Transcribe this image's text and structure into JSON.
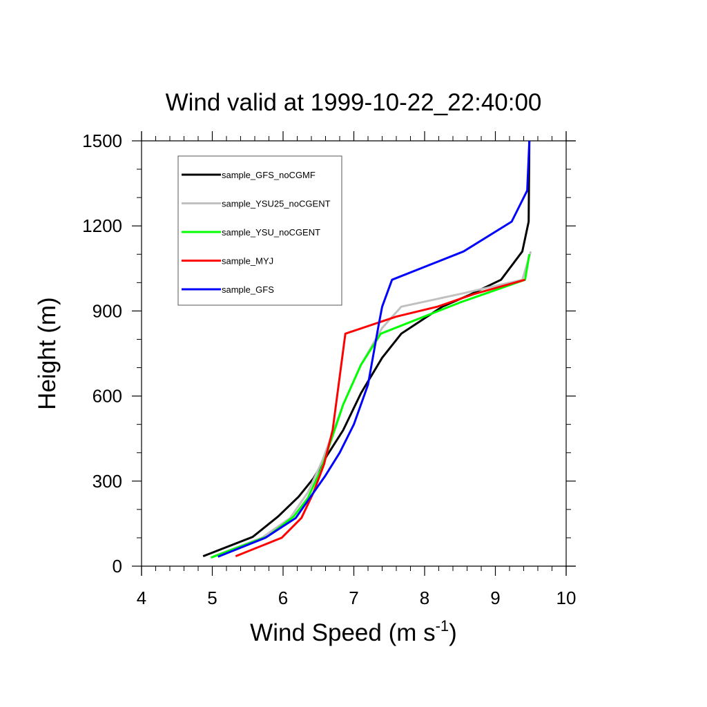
{
  "chart_data": {
    "type": "line",
    "title": "Wind valid at 1999-10-22_22:40:00",
    "xlabel": "Wind Speed (m s",
    "xlabel_sup": "-1",
    "xlabel_close": ")",
    "ylabel": "Height (m)",
    "xlim": [
      4,
      10
    ],
    "ylim": [
      0,
      1500
    ],
    "xticks": [
      4,
      5,
      6,
      7,
      8,
      9,
      10
    ],
    "yticks": [
      0,
      300,
      600,
      900,
      1200,
      1500
    ],
    "grid": false,
    "legend_position": "top-left",
    "colors": {
      "axis": "#000000",
      "legend_border": "#555555"
    },
    "series": [
      {
        "name": "sample_GFS_noCGMF",
        "color": "#000000",
        "points": [
          [
            4.87,
            35
          ],
          [
            5.57,
            103
          ],
          [
            5.93,
            175
          ],
          [
            6.22,
            245
          ],
          [
            6.43,
            310
          ],
          [
            6.62,
            390
          ],
          [
            6.85,
            480
          ],
          [
            7.1,
            610
          ],
          [
            7.4,
            735
          ],
          [
            7.67,
            820
          ],
          [
            8.25,
            915
          ],
          [
            8.62,
            955
          ],
          [
            9.08,
            1010
          ],
          [
            9.38,
            1110
          ],
          [
            9.47,
            1215
          ],
          [
            9.48,
            1500
          ]
        ]
      },
      {
        "name": "sample_YSU25_noCGENT",
        "color": "#c0c0c0",
        "points": [
          [
            5.02,
            35
          ],
          [
            5.7,
            100
          ],
          [
            6.1,
            170
          ],
          [
            6.35,
            260
          ],
          [
            6.55,
            370
          ],
          [
            6.7,
            470
          ],
          [
            6.85,
            570
          ],
          [
            7.1,
            710
          ],
          [
            7.4,
            840
          ],
          [
            7.67,
            915
          ],
          [
            8.5,
            960
          ],
          [
            9.38,
            1010
          ],
          [
            9.5,
            1110
          ]
        ]
      },
      {
        "name": "sample_YSU_noCGENT",
        "color": "#00ff00",
        "points": [
          [
            4.98,
            30
          ],
          [
            5.78,
            105
          ],
          [
            6.15,
            175
          ],
          [
            6.35,
            240
          ],
          [
            6.55,
            350
          ],
          [
            6.7,
            460
          ],
          [
            6.85,
            570
          ],
          [
            7.1,
            710
          ],
          [
            7.38,
            820
          ],
          [
            8.5,
            930
          ],
          [
            9.42,
            1010
          ],
          [
            9.48,
            1100
          ]
        ]
      },
      {
        "name": "sample_MYJ",
        "color": "#ff0000",
        "points": [
          [
            5.33,
            35
          ],
          [
            5.98,
            100
          ],
          [
            6.26,
            170
          ],
          [
            6.43,
            260
          ],
          [
            6.58,
            360
          ],
          [
            6.7,
            480
          ],
          [
            6.88,
            820
          ],
          [
            7.6,
            880
          ],
          [
            8.18,
            915
          ],
          [
            8.7,
            960
          ],
          [
            9.42,
            1010
          ]
        ]
      },
      {
        "name": "sample_GFS",
        "color": "#0000ff",
        "points": [
          [
            5.08,
            33
          ],
          [
            5.75,
            100
          ],
          [
            6.18,
            170
          ],
          [
            6.6,
            320
          ],
          [
            6.8,
            400
          ],
          [
            7.0,
            500
          ],
          [
            7.2,
            640
          ],
          [
            7.35,
            850
          ],
          [
            7.4,
            915
          ],
          [
            7.54,
            1010
          ],
          [
            8.55,
            1110
          ],
          [
            9.23,
            1215
          ],
          [
            9.45,
            1325
          ],
          [
            9.48,
            1500
          ]
        ]
      }
    ]
  }
}
